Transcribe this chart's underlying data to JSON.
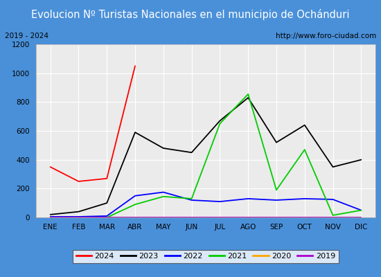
{
  "title": "Evolucion Nº Turistas Nacionales en el municipio de Ochánduri",
  "subtitle_left": "2019 - 2024",
  "subtitle_right": "http://www.foro-ciudad.com",
  "months": [
    "ENE",
    "FEB",
    "MAR",
    "ABR",
    "MAY",
    "JUN",
    "JUL",
    "AGO",
    "SEP",
    "OCT",
    "NOV",
    "DIC"
  ],
  "series": {
    "2024": {
      "color": "#ff0000",
      "data": [
        350,
        250,
        270,
        1050,
        null,
        null,
        null,
        null,
        null,
        null,
        null,
        null
      ]
    },
    "2023": {
      "color": "#000000",
      "data": [
        20,
        40,
        100,
        590,
        480,
        450,
        670,
        830,
        520,
        640,
        350,
        400
      ]
    },
    "2022": {
      "color": "#0000ff",
      "data": [
        5,
        5,
        10,
        150,
        175,
        120,
        110,
        130,
        120,
        130,
        125,
        50
      ]
    },
    "2021": {
      "color": "#00cc00",
      "data": [
        0,
        0,
        0,
        90,
        145,
        130,
        650,
        855,
        190,
        470,
        15,
        50
      ]
    },
    "2020": {
      "color": "#ffa500",
      "data": [
        0,
        0,
        0,
        0,
        0,
        0,
        0,
        0,
        0,
        0,
        0,
        0
      ]
    },
    "2019": {
      "color": "#aa00cc",
      "data": [
        0,
        0,
        0,
        0,
        0,
        0,
        0,
        0,
        0,
        0,
        0,
        0
      ]
    }
  },
  "ylim": [
    0,
    1200
  ],
  "yticks": [
    0,
    200,
    400,
    600,
    800,
    1000,
    1200
  ],
  "title_bg_color": "#4a90d9",
  "title_text_color": "#ffffff",
  "plot_bg_color": "#ebebeb",
  "grid_color": "#ffffff",
  "subtitle_box_color": "#ffffff",
  "outer_border_color": "#4a90d9",
  "legend_order": [
    "2024",
    "2023",
    "2022",
    "2021",
    "2020",
    "2019"
  ]
}
